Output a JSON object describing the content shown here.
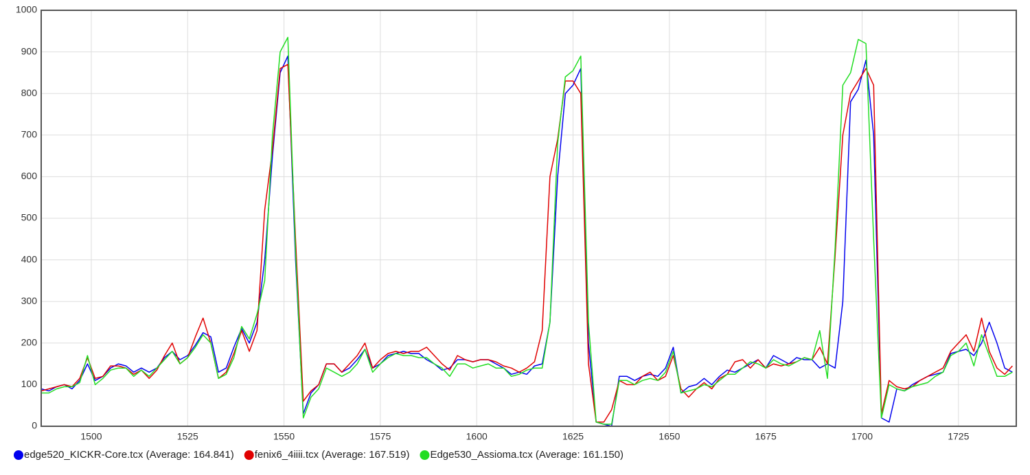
{
  "chart_data": {
    "type": "line",
    "x": [
      1487,
      1489,
      1491,
      1493,
      1495,
      1497,
      1499,
      1501,
      1503,
      1505,
      1507,
      1509,
      1511,
      1513,
      1515,
      1517,
      1519,
      1521,
      1523,
      1525,
      1527,
      1529,
      1531,
      1533,
      1535,
      1537,
      1539,
      1541,
      1543,
      1545,
      1547,
      1549,
      1551,
      1553,
      1555,
      1557,
      1559,
      1561,
      1563,
      1565,
      1567,
      1569,
      1571,
      1573,
      1575,
      1577,
      1579,
      1581,
      1583,
      1585,
      1587,
      1589,
      1591,
      1593,
      1595,
      1597,
      1599,
      1601,
      1603,
      1605,
      1607,
      1609,
      1611,
      1613,
      1615,
      1617,
      1619,
      1621,
      1623,
      1625,
      1627,
      1629,
      1631,
      1633,
      1635,
      1637,
      1639,
      1641,
      1643,
      1645,
      1647,
      1649,
      1651,
      1653,
      1655,
      1657,
      1659,
      1661,
      1663,
      1665,
      1667,
      1669,
      1671,
      1673,
      1675,
      1677,
      1679,
      1681,
      1683,
      1685,
      1687,
      1689,
      1691,
      1693,
      1695,
      1697,
      1699,
      1701,
      1703,
      1705,
      1707,
      1709,
      1711,
      1713,
      1715,
      1717,
      1719,
      1721,
      1723,
      1725,
      1727,
      1729,
      1731,
      1733,
      1735,
      1737,
      1739
    ],
    "series": [
      {
        "name": "edge520_KICKR-Core.tcx (Average: 164.841)",
        "color": "#0000ee",
        "values": [
          90,
          85,
          95,
          100,
          90,
          110,
          150,
          110,
          120,
          140,
          150,
          145,
          130,
          140,
          130,
          140,
          165,
          180,
          160,
          170,
          195,
          225,
          215,
          130,
          140,
          190,
          235,
          200,
          250,
          400,
          650,
          850,
          890,
          400,
          30,
          80,
          100,
          150,
          150,
          130,
          140,
          160,
          185,
          140,
          150,
          170,
          175,
          180,
          175,
          175,
          160,
          150,
          135,
          140,
          160,
          160,
          155,
          160,
          160,
          150,
          140,
          125,
          130,
          125,
          145,
          150,
          250,
          600,
          800,
          820,
          860,
          200,
          10,
          5,
          0,
          120,
          120,
          110,
          120,
          125,
          120,
          140,
          190,
          80,
          95,
          100,
          115,
          100,
          120,
          135,
          130,
          140,
          150,
          160,
          140,
          170,
          160,
          150,
          165,
          160,
          160,
          140,
          150,
          140,
          300,
          780,
          810,
          880,
          700,
          20,
          10,
          90,
          85,
          100,
          110,
          120,
          125,
          130,
          175,
          180,
          185,
          170,
          200,
          250,
          200,
          140,
          130
        ]
      },
      {
        "name": "fenix6_4iiii.tcx (Average: 167.519)",
        "color": "#e00000",
        "values": [
          85,
          90,
          95,
          100,
          95,
          115,
          165,
          115,
          120,
          145,
          145,
          140,
          125,
          135,
          115,
          135,
          170,
          200,
          150,
          165,
          215,
          260,
          200,
          115,
          130,
          175,
          230,
          180,
          230,
          520,
          665,
          860,
          870,
          450,
          60,
          85,
          100,
          150,
          150,
          130,
          150,
          170,
          200,
          140,
          160,
          175,
          180,
          175,
          180,
          180,
          190,
          170,
          150,
          135,
          170,
          160,
          155,
          160,
          160,
          155,
          145,
          140,
          130,
          140,
          155,
          230,
          600,
          690,
          830,
          830,
          800,
          150,
          10,
          10,
          40,
          110,
          100,
          100,
          120,
          130,
          110,
          120,
          170,
          90,
          70,
          90,
          105,
          90,
          115,
          125,
          155,
          160,
          140,
          160,
          140,
          150,
          145,
          150,
          155,
          165,
          160,
          190,
          150,
          410,
          700,
          800,
          830,
          860,
          820,
          30,
          110,
          95,
          90,
          95,
          110,
          120,
          130,
          140,
          180,
          200,
          220,
          180,
          260,
          180,
          140,
          125,
          145
        ]
      },
      {
        "name": "Edge530_Assioma.tcx (Average: 161.150)",
        "color": "#22dd22",
        "values": [
          80,
          80,
          90,
          95,
          95,
          105,
          170,
          100,
          115,
          135,
          140,
          140,
          120,
          135,
          120,
          140,
          160,
          180,
          150,
          165,
          190,
          220,
          200,
          115,
          125,
          165,
          240,
          210,
          270,
          350,
          700,
          900,
          935,
          420,
          20,
          70,
          90,
          140,
          130,
          120,
          130,
          150,
          185,
          130,
          150,
          165,
          175,
          170,
          170,
          165,
          165,
          150,
          140,
          120,
          150,
          150,
          140,
          145,
          150,
          140,
          140,
          120,
          125,
          135,
          140,
          140,
          250,
          680,
          840,
          855,
          890,
          250,
          10,
          5,
          5,
          110,
          110,
          100,
          110,
          115,
          110,
          130,
          180,
          80,
          85,
          90,
          100,
          95,
          110,
          125,
          125,
          140,
          155,
          150,
          140,
          160,
          150,
          145,
          155,
          165,
          160,
          230,
          115,
          430,
          820,
          850,
          930,
          920,
          450,
          20,
          100,
          90,
          85,
          95,
          100,
          105,
          120,
          130,
          170,
          180,
          200,
          145,
          220,
          170,
          120,
          120,
          130
        ]
      }
    ],
    "xlim": [
      1487,
      1740
    ],
    "xticks": [
      1500,
      1525,
      1550,
      1575,
      1600,
      1625,
      1650,
      1675,
      1700,
      1725
    ],
    "ylim": [
      0,
      1000
    ],
    "yticks": [
      0,
      100,
      200,
      300,
      400,
      500,
      600,
      700,
      800,
      900,
      1000
    ],
    "grid": true
  }
}
